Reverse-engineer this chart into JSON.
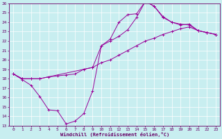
{
  "xlabel": "Windchill (Refroidissement éolien,°C)",
  "bg_color": "#c8eef0",
  "line_color": "#990099",
  "xlim": [
    -0.5,
    23.5
  ],
  "ylim": [
    13,
    26
  ],
  "xticks": [
    0,
    1,
    2,
    3,
    4,
    5,
    6,
    7,
    8,
    9,
    10,
    11,
    12,
    13,
    14,
    15,
    16,
    17,
    18,
    19,
    20,
    21,
    22,
    23
  ],
  "yticks": [
    13,
    14,
    15,
    16,
    17,
    18,
    19,
    20,
    21,
    22,
    23,
    24,
    25,
    26
  ],
  "line1_x": [
    0,
    1,
    2,
    3,
    4,
    5,
    6,
    7,
    8,
    9,
    10,
    11,
    12,
    13,
    14,
    15,
    16,
    17,
    18,
    19,
    20,
    21,
    22,
    23
  ],
  "line1_y": [
    18.5,
    17.9,
    17.3,
    16.1,
    14.7,
    14.6,
    13.2,
    13.5,
    14.3,
    16.7,
    21.5,
    22.2,
    24.0,
    24.8,
    24.9,
    26.2,
    25.7,
    24.5,
    24.0,
    23.7,
    23.8,
    23.1,
    22.9,
    22.7
  ],
  "line2_x": [
    0,
    1,
    2,
    3,
    4,
    5,
    6,
    7,
    8,
    9,
    10,
    11,
    12,
    13,
    14,
    15,
    16,
    17,
    18,
    19,
    20,
    21,
    22,
    23
  ],
  "line2_y": [
    18.5,
    18.0,
    18.0,
    18.0,
    18.2,
    18.3,
    18.4,
    18.5,
    19.0,
    19.2,
    19.7,
    20.0,
    20.5,
    21.0,
    21.5,
    22.0,
    22.3,
    22.7,
    23.0,
    23.3,
    23.5,
    23.1,
    22.9,
    22.7
  ],
  "line3_x": [
    0,
    1,
    2,
    3,
    9,
    10,
    11,
    12,
    13,
    14,
    15,
    16,
    17,
    18,
    19,
    20,
    21,
    22,
    23
  ],
  "line3_y": [
    18.5,
    18.0,
    18.0,
    18.0,
    19.2,
    21.5,
    22.0,
    22.5,
    23.2,
    24.5,
    26.2,
    25.7,
    24.6,
    24.0,
    23.8,
    23.7,
    23.1,
    22.9,
    22.7
  ]
}
